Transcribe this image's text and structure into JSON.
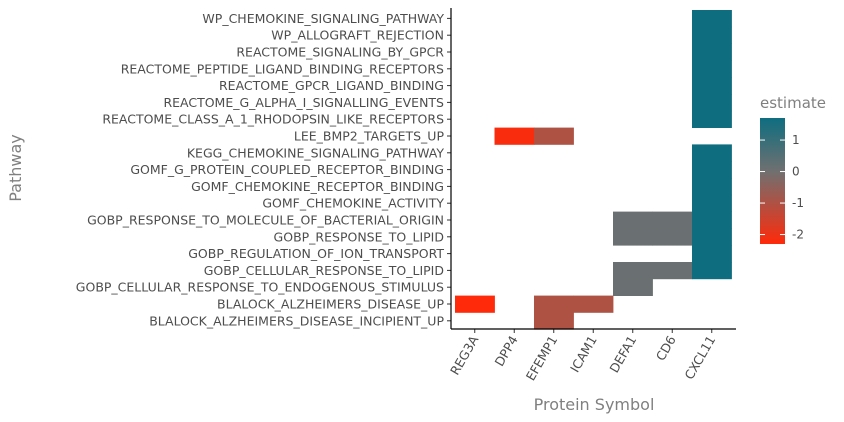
{
  "chart_data": {
    "type": "heatmap",
    "xlabel": "Protein Symbol",
    "ylabel": "Pathway",
    "x_categories": [
      "REG3A",
      "DPP4",
      "EFEMP1",
      "ICAM1",
      "DEFA1",
      "CD6",
      "CXCL11"
    ],
    "y_categories": [
      "WP_CHEMOKINE_SIGNALING_PATHWAY",
      "WP_ALLOGRAFT_REJECTION",
      "REACTOME_SIGNALING_BY_GPCR",
      "REACTOME_PEPTIDE_LIGAND_BINDING_RECEPTORS",
      "REACTOME_GPCR_LIGAND_BINDING",
      "REACTOME_G_ALPHA_I_SIGNALLING_EVENTS",
      "REACTOME_CLASS_A_1_RHODOPSIN_LIKE_RECEPTORS",
      "LEE_BMP2_TARGETS_UP",
      "KEGG_CHEMOKINE_SIGNALING_PATHWAY",
      "GOMF_G_PROTEIN_COUPLED_RECEPTOR_BINDING",
      "GOMF_CHEMOKINE_RECEPTOR_BINDING",
      "GOMF_CHEMOKINE_ACTIVITY",
      "GOBP_RESPONSE_TO_MOLECULE_OF_BACTERIAL_ORIGIN",
      "GOBP_RESPONSE_TO_LIPID",
      "GOBP_REGULATION_OF_ION_TRANSPORT",
      "GOBP_CELLULAR_RESPONSE_TO_LIPID",
      "GOBP_CELLULAR_RESPONSE_TO_ENDOGENOUS_STIMULUS",
      "BLALOCK_ALZHEIMERS_DISEASE_UP",
      "BLALOCK_ALZHEIMERS_DISEASE_INCIPIENT_UP"
    ],
    "cells": [
      {
        "x": "CXCL11",
        "y": "WP_CHEMOKINE_SIGNALING_PATHWAY",
        "value": 1.7
      },
      {
        "x": "CXCL11",
        "y": "WP_ALLOGRAFT_REJECTION",
        "value": 1.7
      },
      {
        "x": "CXCL11",
        "y": "REACTOME_SIGNALING_BY_GPCR",
        "value": 1.7
      },
      {
        "x": "CXCL11",
        "y": "REACTOME_PEPTIDE_LIGAND_BINDING_RECEPTORS",
        "value": 1.7
      },
      {
        "x": "CXCL11",
        "y": "REACTOME_GPCR_LIGAND_BINDING",
        "value": 1.7
      },
      {
        "x": "CXCL11",
        "y": "REACTOME_G_ALPHA_I_SIGNALLING_EVENTS",
        "value": 1.7
      },
      {
        "x": "CXCL11",
        "y": "REACTOME_CLASS_A_1_RHODOPSIN_LIKE_RECEPTORS",
        "value": 1.7
      },
      {
        "x": "DPP4",
        "y": "LEE_BMP2_TARGETS_UP",
        "value": -2.2
      },
      {
        "x": "EFEMP1",
        "y": "LEE_BMP2_TARGETS_UP",
        "value": -1.0
      },
      {
        "x": "CXCL11",
        "y": "KEGG_CHEMOKINE_SIGNALING_PATHWAY",
        "value": 1.7
      },
      {
        "x": "CXCL11",
        "y": "GOMF_G_PROTEIN_COUPLED_RECEPTOR_BINDING",
        "value": 1.7
      },
      {
        "x": "CXCL11",
        "y": "GOMF_CHEMOKINE_RECEPTOR_BINDING",
        "value": 1.7
      },
      {
        "x": "CXCL11",
        "y": "GOMF_CHEMOKINE_ACTIVITY",
        "value": 1.7
      },
      {
        "x": "DEFA1",
        "y": "GOBP_RESPONSE_TO_MOLECULE_OF_BACTERIAL_ORIGIN",
        "value": 0.1
      },
      {
        "x": "CD6",
        "y": "GOBP_RESPONSE_TO_MOLECULE_OF_BACTERIAL_ORIGIN",
        "value": 0.1
      },
      {
        "x": "CXCL11",
        "y": "GOBP_RESPONSE_TO_MOLECULE_OF_BACTERIAL_ORIGIN",
        "value": 1.7
      },
      {
        "x": "DEFA1",
        "y": "GOBP_RESPONSE_TO_LIPID",
        "value": 0.1
      },
      {
        "x": "CD6",
        "y": "GOBP_RESPONSE_TO_LIPID",
        "value": 0.1
      },
      {
        "x": "CXCL11",
        "y": "GOBP_RESPONSE_TO_LIPID",
        "value": 1.7
      },
      {
        "x": "CXCL11",
        "y": "GOBP_REGULATION_OF_ION_TRANSPORT",
        "value": 1.7
      },
      {
        "x": "DEFA1",
        "y": "GOBP_CELLULAR_RESPONSE_TO_LIPID",
        "value": 0.1
      },
      {
        "x": "CD6",
        "y": "GOBP_CELLULAR_RESPONSE_TO_LIPID",
        "value": 0.1
      },
      {
        "x": "CXCL11",
        "y": "GOBP_CELLULAR_RESPONSE_TO_LIPID",
        "value": 1.7
      },
      {
        "x": "DEFA1",
        "y": "GOBP_CELLULAR_RESPONSE_TO_ENDOGENOUS_STIMULUS",
        "value": 0.1
      },
      {
        "x": "REG3A",
        "y": "BLALOCK_ALZHEIMERS_DISEASE_UP",
        "value": -2.3
      },
      {
        "x": "EFEMP1",
        "y": "BLALOCK_ALZHEIMERS_DISEASE_UP",
        "value": -1.0
      },
      {
        "x": "ICAM1",
        "y": "BLALOCK_ALZHEIMERS_DISEASE_UP",
        "value": -1.0
      },
      {
        "x": "EFEMP1",
        "y": "BLALOCK_ALZHEIMERS_DISEASE_INCIPIENT_UP",
        "value": -1.0
      }
    ],
    "legend": {
      "title": "estimate",
      "ticks": [
        "1",
        "0",
        "-1",
        "-2"
      ],
      "tick_values": [
        1,
        0,
        -1,
        -2
      ],
      "range": [
        -2.3,
        1.7
      ],
      "low_color": "#ff2a0a",
      "mid_color": "#707070",
      "high_color": "#0e6e80"
    },
    "grid": false,
    "legend_position": "right"
  }
}
